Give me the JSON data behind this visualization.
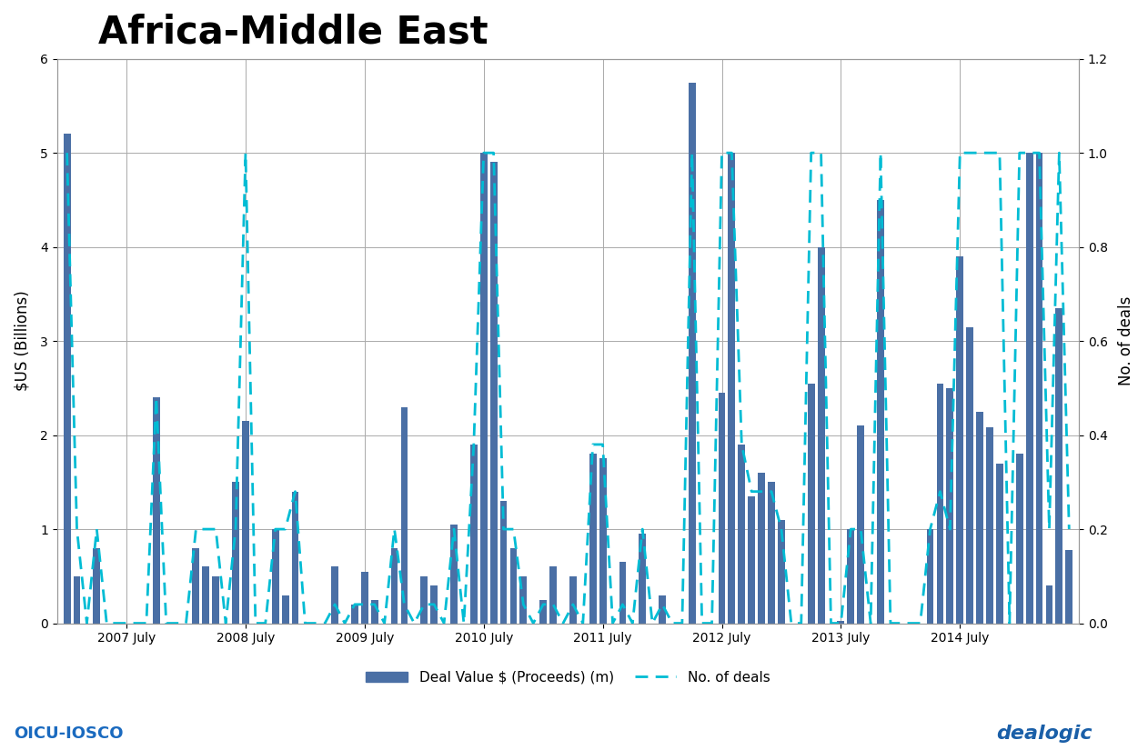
{
  "title": "Africa-Middle East",
  "ylabel_left": "$US (Billions)",
  "ylabel_right": "No. of deals",
  "ylim_left": [
    0,
    6
  ],
  "ylim_right": [
    0,
    1.2
  ],
  "yticks_left": [
    0,
    1,
    2,
    3,
    4,
    5,
    6
  ],
  "yticks_right": [
    0,
    0.2,
    0.4,
    0.6,
    0.8,
    1.0,
    1.2
  ],
  "bar_color": "#4a6fa5",
  "line_color": "#00bcd4",
  "background_color": "#ffffff",
  "legend_bar_label": "Deal Value $ (Proceeds) (m)",
  "legend_line_label": "No. of deals",
  "xtick_labels": [
    "2007 July",
    "2008 July",
    "2009 July",
    "2010 July",
    "2011 July",
    "2012 July",
    "2013 July",
    "2014 July"
  ],
  "xtick_positions": [
    6,
    18,
    30,
    42,
    54,
    66,
    78,
    90
  ],
  "bar_values": [
    5.2,
    0.5,
    0.0,
    0.8,
    0.0,
    0.0,
    0.0,
    0.0,
    0.0,
    2.4,
    0.0,
    0.0,
    0.0,
    0.8,
    0.6,
    0.5,
    0.0,
    1.5,
    2.15,
    0.0,
    0.0,
    1.0,
    0.3,
    1.4,
    0.0,
    0.0,
    0.0,
    0.6,
    0.0,
    0.2,
    0.55,
    0.25,
    0.0,
    0.8,
    2.3,
    0.0,
    0.5,
    0.4,
    0.0,
    1.05,
    0.0,
    1.9,
    5.0,
    4.9,
    1.3,
    0.8,
    0.5,
    0.0,
    0.25,
    0.6,
    0.0,
    0.5,
    0.0,
    1.8,
    1.75,
    0.0,
    0.65,
    0.0,
    0.95,
    0.0,
    0.3,
    0.0,
    0.0,
    5.75,
    0.0,
    0.0,
    2.45,
    5.0,
    1.9,
    1.35,
    1.6,
    1.5,
    1.1,
    0.0,
    0.0,
    2.55,
    4.0,
    0.0,
    0.02,
    1.0,
    2.1,
    0.0,
    4.5,
    0.0,
    0.0,
    0.0,
    0.0,
    1.0,
    2.55,
    2.5,
    3.9,
    3.15,
    2.25,
    2.08,
    1.7,
    0.0,
    1.8,
    5.0,
    5.0,
    0.4,
    3.35,
    0.78
  ],
  "line_values": [
    1.0,
    0.2,
    0.0,
    0.2,
    0.0,
    0.0,
    0.0,
    0.0,
    0.0,
    0.48,
    0.0,
    0.0,
    0.0,
    0.2,
    0.2,
    0.2,
    0.0,
    0.2,
    1.0,
    0.0,
    0.0,
    0.2,
    0.2,
    0.28,
    0.0,
    0.0,
    0.0,
    0.04,
    0.0,
    0.04,
    0.04,
    0.04,
    0.0,
    0.2,
    0.04,
    0.0,
    0.04,
    0.04,
    0.0,
    0.2,
    0.0,
    0.38,
    1.0,
    1.0,
    0.2,
    0.2,
    0.04,
    0.0,
    0.04,
    0.04,
    0.0,
    0.04,
    0.0,
    0.38,
    0.38,
    0.0,
    0.04,
    0.0,
    0.2,
    0.0,
    0.04,
    0.0,
    0.0,
    1.0,
    0.0,
    0.0,
    1.0,
    1.0,
    0.38,
    0.28,
    0.28,
    0.28,
    0.2,
    0.0,
    0.0,
    1.0,
    1.0,
    0.0,
    0.0,
    0.2,
    0.2,
    0.0,
    1.0,
    0.0,
    0.0,
    0.0,
    0.0,
    0.2,
    0.28,
    0.2,
    1.0,
    1.0,
    1.0,
    1.0,
    1.0,
    0.0,
    1.0,
    1.0,
    1.0,
    0.2,
    1.0,
    0.2
  ]
}
